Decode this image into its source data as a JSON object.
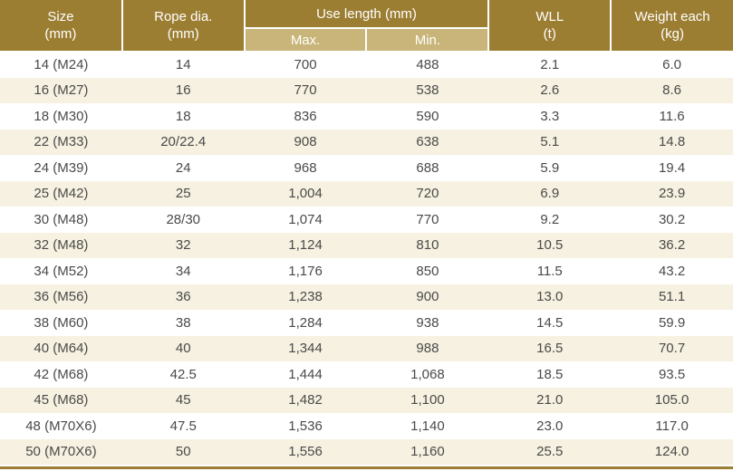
{
  "colors": {
    "header_bg": "#9c7e33",
    "subheader_bg": "#c9b579",
    "row_alt_bg": "#f6f1e0",
    "row_bg": "#ffffff",
    "header_text": "#ffffff",
    "body_text": "#4a4a4a",
    "accent_line": "#9c7e33"
  },
  "table": {
    "headers": {
      "size": {
        "line1": "Size",
        "line2": "(mm)"
      },
      "rope_dia": {
        "line1": "Rope dia.",
        "line2": "(mm)"
      },
      "use_length": {
        "label": "Use length (mm)",
        "sub": {
          "max": "Max.",
          "min": "Min."
        }
      },
      "wll": {
        "line1": "WLL",
        "line2": "(t)"
      },
      "weight": {
        "line1": "Weight each",
        "line2": "(kg)"
      }
    },
    "rows": [
      {
        "size": "14 (M24)",
        "rope_dia": "14",
        "max": "700",
        "min": "488",
        "wll": "2.1",
        "weight": "6.0"
      },
      {
        "size": "16 (M27)",
        "rope_dia": "16",
        "max": "770",
        "min": "538",
        "wll": "2.6",
        "weight": "8.6"
      },
      {
        "size": "18 (M30)",
        "rope_dia": "18",
        "max": "836",
        "min": "590",
        "wll": "3.3",
        "weight": "11.6"
      },
      {
        "size": "22 (M33)",
        "rope_dia": "20/22.4",
        "max": "908",
        "min": "638",
        "wll": "5.1",
        "weight": "14.8"
      },
      {
        "size": "24 (M39)",
        "rope_dia": "24",
        "max": "968",
        "min": "688",
        "wll": "5.9",
        "weight": "19.4"
      },
      {
        "size": "25 (M42)",
        "rope_dia": "25",
        "max": "1,004",
        "min": "720",
        "wll": "6.9",
        "weight": "23.9"
      },
      {
        "size": "30 (M48)",
        "rope_dia": "28/30",
        "max": "1,074",
        "min": "770",
        "wll": "9.2",
        "weight": "30.2"
      },
      {
        "size": "32 (M48)",
        "rope_dia": "32",
        "max": "1,124",
        "min": "810",
        "wll": "10.5",
        "weight": "36.2"
      },
      {
        "size": "34 (M52)",
        "rope_dia": "34",
        "max": "1,176",
        "min": "850",
        "wll": "11.5",
        "weight": "43.2"
      },
      {
        "size": "36 (M56)",
        "rope_dia": "36",
        "max": "1,238",
        "min": "900",
        "wll": "13.0",
        "weight": "51.1"
      },
      {
        "size": "38 (M60)",
        "rope_dia": "38",
        "max": "1,284",
        "min": "938",
        "wll": "14.5",
        "weight": "59.9"
      },
      {
        "size": "40 (M64)",
        "rope_dia": "40",
        "max": "1,344",
        "min": "988",
        "wll": "16.5",
        "weight": "70.7"
      },
      {
        "size": "42 (M68)",
        "rope_dia": "42.5",
        "max": "1,444",
        "min": "1,068",
        "wll": "18.5",
        "weight": "93.5"
      },
      {
        "size": "45 (M68)",
        "rope_dia": "45",
        "max": "1,482",
        "min": "1,100",
        "wll": "21.0",
        "weight": "105.0"
      },
      {
        "size": "48 (M70X6)",
        "rope_dia": "47.5",
        "max": "1,536",
        "min": "1,140",
        "wll": "23.0",
        "weight": "117.0"
      },
      {
        "size": "50 (M70X6)",
        "rope_dia": "50",
        "max": "1,556",
        "min": "1,160",
        "wll": "25.5",
        "weight": "124.0"
      }
    ]
  }
}
